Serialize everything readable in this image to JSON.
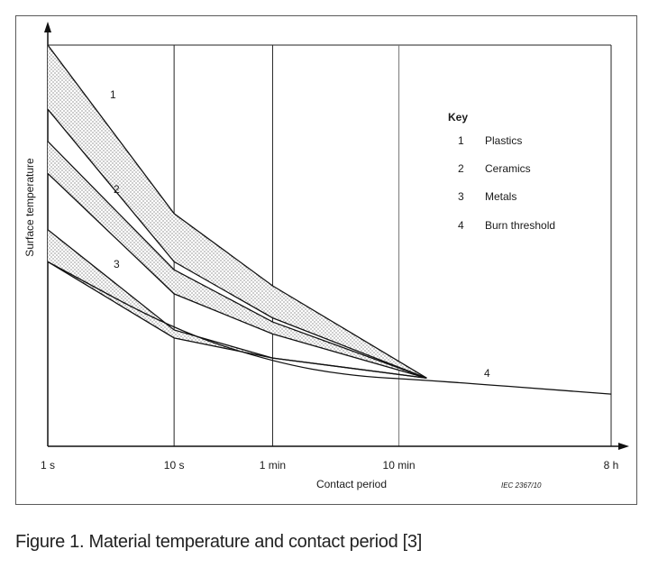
{
  "caption": "Figure 1. Material temperature and contact period [3]",
  "chart_data": {
    "type": "line",
    "xlabel": "Contact period",
    "ylabel": "Surface temperature",
    "x_ticks": [
      "1 s",
      "10 s",
      "1 min",
      "10 min",
      "8 h"
    ],
    "x_scale": "log",
    "grid": "vertical at tick marks",
    "key": {
      "title": "Key",
      "items": [
        {
          "num": "1",
          "label": "Plastics"
        },
        {
          "num": "2",
          "label": "Ceramics"
        },
        {
          "num": "3",
          "label": "Metals"
        },
        {
          "num": "4",
          "label": "Burn threshold"
        }
      ]
    },
    "bands": [
      {
        "label": "1",
        "upper": [
          [
            0,
            1.0
          ],
          [
            1,
            0.58
          ],
          [
            1.78,
            0.4
          ],
          [
            3,
            0.17
          ]
        ],
        "lower": [
          [
            0,
            0.84
          ],
          [
            1,
            0.46
          ],
          [
            1.78,
            0.32
          ],
          [
            3,
            0.17
          ]
        ]
      },
      {
        "label": "2",
        "upper": [
          [
            0,
            0.76
          ],
          [
            1,
            0.44
          ],
          [
            1.78,
            0.31
          ],
          [
            3,
            0.17
          ]
        ],
        "lower": [
          [
            0,
            0.68
          ],
          [
            1,
            0.38
          ],
          [
            1.78,
            0.28
          ],
          [
            3,
            0.17
          ]
        ]
      },
      {
        "label": "3",
        "upper": [
          [
            0,
            0.54
          ],
          [
            1,
            0.29
          ],
          [
            1.78,
            0.22
          ],
          [
            3,
            0.17
          ]
        ],
        "lower": [
          [
            0,
            0.46
          ],
          [
            1,
            0.27
          ],
          [
            1.78,
            0.22
          ],
          [
            3,
            0.17
          ]
        ]
      }
    ],
    "burn_threshold": {
      "label": "4",
      "points": [
        [
          0,
          0.46
        ],
        [
          1,
          0.29
        ],
        [
          1.78,
          0.21
        ],
        [
          2.4,
          0.175
        ],
        [
          3,
          0.165
        ],
        [
          4.46,
          0.13
        ]
      ]
    },
    "source_note": "IEC   2367/10"
  }
}
